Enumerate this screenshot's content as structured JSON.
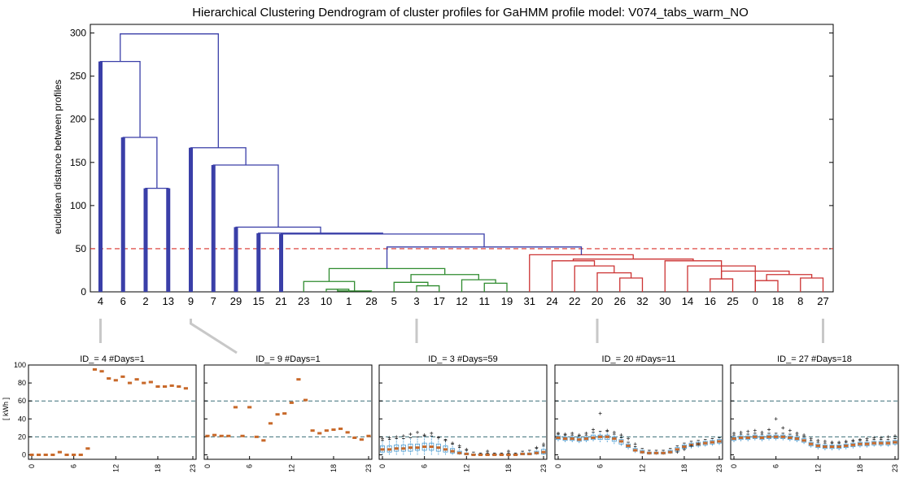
{
  "chart_data": [
    {
      "type": "dendrogram",
      "title": "Hierarchical Clustering Dendrogram of cluster profiles for GaHMM profile model: V074_tabs_warm_NO",
      "ylabel": "euclidean distance between profiles",
      "ylim": [
        0,
        310
      ],
      "yticks": [
        0,
        50,
        100,
        150,
        200,
        250,
        300
      ],
      "threshold": 50,
      "leaves": [
        "4",
        "6",
        "2",
        "13",
        "9",
        "7",
        "29",
        "15",
        "21",
        "23",
        "10",
        "1",
        "28",
        "5",
        "3",
        "17",
        "12",
        "11",
        "19",
        "31",
        "24",
        "22",
        "20",
        "26",
        "32",
        "30",
        "14",
        "16",
        "25",
        "0",
        "18",
        "8",
        "27"
      ],
      "thick_leaves": [
        "4",
        "6",
        "2",
        "13",
        "9",
        "7",
        "29",
        "15",
        "21"
      ],
      "colors": {
        "blue": "#3a3fa8",
        "green": "#2e8b2e",
        "red": "#cc3333",
        "threshold": "#d9302a"
      },
      "links": [
        {
          "l": 10,
          "r": 11,
          "h": 3,
          "c": "green"
        },
        {
          "l": 10.5,
          "r": 12,
          "h": 1,
          "c": "green"
        },
        {
          "l": 9,
          "r": 11.25,
          "h": 12,
          "c": "green"
        },
        {
          "l": 14,
          "r": 15,
          "h": 7,
          "c": "green"
        },
        {
          "l": 13,
          "r": 14.5,
          "h": 11,
          "c": "green"
        },
        {
          "l": 17,
          "r": 18,
          "h": 10,
          "c": "green"
        },
        {
          "l": 16,
          "r": 17.5,
          "h": 14,
          "c": "green"
        },
        {
          "l": 13.75,
          "r": 16.75,
          "h": 20,
          "c": "green"
        },
        {
          "l": 10.125,
          "r": 15.25,
          "h": 27,
          "c": "green"
        },
        {
          "l": 23,
          "r": 24,
          "h": 16,
          "c": "red"
        },
        {
          "l": 22,
          "r": 23.5,
          "h": 22,
          "c": "red"
        },
        {
          "l": 21,
          "r": 22.75,
          "h": 30,
          "c": "red"
        },
        {
          "l": 20,
          "r": 21.875,
          "h": 36,
          "c": "red"
        },
        {
          "l": 27,
          "r": 28,
          "h": 15,
          "c": "red"
        },
        {
          "l": 29,
          "r": 30,
          "h": 13,
          "c": "red"
        },
        {
          "l": 31,
          "r": 32,
          "h": 16,
          "c": "red"
        },
        {
          "l": 29.5,
          "r": 31.5,
          "h": 20,
          "c": "red"
        },
        {
          "l": 27.5,
          "r": 30.5,
          "h": 24,
          "c": "red"
        },
        {
          "l": 26,
          "r": 29,
          "h": 30,
          "c": "red"
        },
        {
          "l": 25,
          "r": 27.5,
          "h": 36,
          "c": "red"
        },
        {
          "l": 20.9375,
          "r": 26.25,
          "h": 38,
          "c": "red"
        },
        {
          "l": 19,
          "r": 23.59375,
          "h": 43,
          "c": "red"
        },
        {
          "l": 12.6875,
          "r": 21.296875,
          "h": 52,
          "c": "blue"
        },
        {
          "l": 8,
          "r": 16.9921875,
          "h": 67,
          "c": "blue"
        },
        {
          "l": 7,
          "r": 12.49609375,
          "h": 68,
          "c": "blue"
        },
        {
          "l": 6,
          "r": 9.748046875,
          "h": 75,
          "c": "blue"
        },
        {
          "l": 5,
          "r": 7.8740234375,
          "h": 147,
          "c": "blue"
        },
        {
          "l": 4,
          "r": 6.43701171875,
          "h": 167,
          "c": "blue"
        },
        {
          "l": 2,
          "r": 3,
          "h": 120,
          "c": "blue"
        },
        {
          "l": 1,
          "r": 2.5,
          "h": 179,
          "c": "blue"
        },
        {
          "l": 0,
          "r": 1.75,
          "h": 267,
          "c": "blue"
        },
        {
          "l": 0.875,
          "r": 5.218505859375,
          "h": 299,
          "c": "blue"
        }
      ],
      "callouts": [
        {
          "leaf": "4",
          "panel": 0
        },
        {
          "leaf": "9",
          "panel": 1
        },
        {
          "leaf": "3",
          "panel": 2
        },
        {
          "leaf": "20",
          "panel": 3
        },
        {
          "leaf": "27",
          "panel": 4
        }
      ]
    },
    {
      "type": "box",
      "panels": [
        {
          "title": "ID_= 4 #Days=1",
          "median": [
            0,
            0,
            0,
            0,
            3,
            0,
            0,
            0,
            7,
            95,
            93,
            85,
            83,
            87,
            80,
            84,
            80,
            81,
            76,
            76,
            77,
            76,
            74
          ],
          "q1": [
            0,
            0,
            0,
            0,
            3,
            0,
            0,
            0,
            7,
            95,
            93,
            85,
            83,
            87,
            80,
            84,
            80,
            81,
            76,
            76,
            77,
            76,
            74
          ],
          "q3": [
            0,
            0,
            0,
            0,
            3,
            0,
            0,
            0,
            7,
            95,
            93,
            85,
            83,
            87,
            80,
            84,
            80,
            81,
            76,
            76,
            77,
            76,
            74
          ],
          "wlo": [
            0,
            0,
            0,
            0,
            3,
            0,
            0,
            0,
            7,
            95,
            93,
            85,
            83,
            87,
            80,
            84,
            80,
            81,
            76,
            76,
            77,
            76,
            74
          ],
          "whi": [
            0,
            0,
            0,
            0,
            3,
            0,
            0,
            0,
            7,
            95,
            93,
            85,
            83,
            87,
            80,
            84,
            80,
            81,
            76,
            76,
            77,
            76,
            74
          ],
          "outliers": []
        },
        {
          "title": "ID_= 9 #Days=1",
          "median": [
            21,
            22,
            21,
            21,
            53,
            21,
            53,
            20,
            16,
            35,
            45,
            46,
            58,
            84,
            61,
            27,
            24,
            27,
            28,
            29,
            25,
            19,
            17,
            21
          ],
          "q1": [
            21,
            22,
            21,
            21,
            53,
            21,
            53,
            20,
            16,
            35,
            45,
            46,
            58,
            84,
            61,
            27,
            24,
            27,
            28,
            29,
            25,
            19,
            17,
            21
          ],
          "q3": [
            21,
            22,
            21,
            21,
            53,
            21,
            53,
            20,
            16,
            35,
            45,
            46,
            58,
            84,
            61,
            27,
            24,
            27,
            28,
            29,
            25,
            19,
            17,
            21
          ],
          "wlo": [
            21,
            22,
            21,
            21,
            53,
            21,
            53,
            20,
            16,
            35,
            45,
            46,
            58,
            84,
            61,
            27,
            24,
            27,
            28,
            29,
            25,
            19,
            17,
            21
          ],
          "whi": [
            21,
            22,
            21,
            21,
            53,
            21,
            53,
            20,
            16,
            35,
            45,
            46,
            58,
            84,
            61,
            27,
            24,
            27,
            28,
            29,
            25,
            19,
            17,
            21
          ],
          "outliers": []
        },
        {
          "title": "ID_= 3 #Days=59",
          "median": [
            6,
            6,
            7,
            7,
            8,
            8,
            9,
            9,
            8,
            6,
            4,
            2,
            1,
            0,
            0,
            0,
            0,
            0,
            0,
            0,
            1,
            1,
            2,
            3
          ],
          "q1": [
            3,
            3,
            4,
            4,
            4,
            5,
            5,
            5,
            4,
            3,
            2,
            1,
            0,
            0,
            0,
            0,
            0,
            0,
            0,
            0,
            0,
            0,
            1,
            1
          ],
          "q3": [
            10,
            10,
            11,
            11,
            12,
            12,
            13,
            13,
            12,
            10,
            7,
            4,
            2,
            1,
            1,
            1,
            1,
            1,
            1,
            1,
            2,
            2,
            4,
            6
          ],
          "wlo": [
            0,
            0,
            0,
            0,
            0,
            0,
            0,
            0,
            0,
            0,
            0,
            0,
            0,
            0,
            0,
            0,
            0,
            0,
            0,
            0,
            0,
            0,
            0,
            0
          ],
          "whi": [
            16,
            17,
            18,
            18,
            19,
            20,
            21,
            21,
            20,
            17,
            12,
            8,
            5,
            3,
            2,
            2,
            2,
            2,
            2,
            2,
            4,
            5,
            7,
            10
          ],
          "outliers": [
            [
              0,
              18
            ],
            [
              1,
              19
            ],
            [
              2,
              20
            ],
            [
              3,
              21
            ],
            [
              4,
              23
            ],
            [
              5,
              25
            ],
            [
              6,
              22
            ],
            [
              7,
              24
            ],
            [
              8,
              19
            ],
            [
              9,
              16
            ],
            [
              10,
              13
            ],
            [
              11,
              10
            ],
            [
              12,
              6
            ],
            [
              22,
              8
            ],
            [
              23,
              12
            ],
            [
              15,
              4
            ],
            [
              18,
              4
            ]
          ]
        },
        {
          "title": "ID_= 20 #Days=11",
          "median": [
            19,
            18,
            18,
            17,
            18,
            19,
            20,
            20,
            18,
            15,
            10,
            5,
            3,
            2,
            2,
            2,
            3,
            6,
            9,
            11,
            12,
            13,
            14,
            15
          ],
          "q1": [
            17,
            16,
            16,
            15,
            16,
            17,
            17,
            17,
            15,
            12,
            8,
            4,
            2,
            1,
            1,
            1,
            2,
            4,
            7,
            9,
            10,
            11,
            12,
            13
          ],
          "q3": [
            21,
            20,
            20,
            19,
            20,
            22,
            22,
            22,
            20,
            17,
            12,
            7,
            5,
            3,
            3,
            3,
            5,
            8,
            11,
            13,
            14,
            15,
            16,
            17
          ],
          "wlo": [
            15,
            14,
            14,
            13,
            14,
            15,
            14,
            14,
            12,
            10,
            6,
            2,
            1,
            0,
            0,
            0,
            1,
            2,
            5,
            7,
            8,
            9,
            10,
            11
          ],
          "whi": [
            23,
            22,
            22,
            21,
            22,
            25,
            26,
            26,
            23,
            19,
            14,
            9,
            7,
            5,
            5,
            5,
            7,
            10,
            13,
            15,
            16,
            17,
            18,
            19
          ],
          "outliers": [
            [
              0,
              24
            ],
            [
              1,
              23
            ],
            [
              2,
              24
            ],
            [
              3,
              22
            ],
            [
              4,
              24
            ],
            [
              5,
              28
            ],
            [
              6,
              46
            ],
            [
              7,
              27
            ],
            [
              8,
              25
            ],
            [
              9,
              22
            ],
            [
              10,
              18
            ],
            [
              11,
              12
            ],
            [
              17,
              3
            ],
            [
              18,
              6
            ],
            [
              19,
              10
            ],
            [
              20,
              12
            ]
          ]
        },
        {
          "title": "ID_= 27 #Days=18",
          "median": [
            18,
            19,
            19,
            20,
            19,
            20,
            20,
            20,
            19,
            18,
            16,
            12,
            10,
            9,
            9,
            9,
            10,
            11,
            12,
            12,
            13,
            13,
            13,
            14
          ],
          "q1": [
            16,
            17,
            17,
            18,
            17,
            18,
            18,
            18,
            17,
            16,
            14,
            10,
            8,
            7,
            7,
            7,
            8,
            9,
            10,
            10,
            11,
            11,
            11,
            12
          ],
          "q3": [
            20,
            21,
            21,
            22,
            21,
            22,
            22,
            22,
            21,
            20,
            18,
            14,
            12,
            11,
            11,
            11,
            12,
            13,
            14,
            14,
            15,
            15,
            15,
            16
          ],
          "wlo": [
            14,
            15,
            15,
            16,
            15,
            16,
            16,
            16,
            15,
            14,
            12,
            8,
            6,
            5,
            5,
            5,
            6,
            7,
            8,
            8,
            9,
            9,
            9,
            10
          ],
          "whi": [
            22,
            23,
            23,
            24,
            23,
            24,
            24,
            24,
            23,
            22,
            20,
            16,
            14,
            13,
            13,
            13,
            14,
            15,
            16,
            16,
            17,
            17,
            17,
            18
          ],
          "outliers": [
            [
              0,
              24
            ],
            [
              1,
              25
            ],
            [
              2,
              26
            ],
            [
              3,
              27
            ],
            [
              4,
              25
            ],
            [
              5,
              28
            ],
            [
              6,
              40
            ],
            [
              7,
              30
            ],
            [
              8,
              27
            ],
            [
              9,
              24
            ],
            [
              10,
              22
            ],
            [
              11,
              18
            ],
            [
              12,
              16
            ],
            [
              13,
              15
            ],
            [
              14,
              14
            ],
            [
              15,
              14
            ],
            [
              16,
              15
            ],
            [
              17,
              16
            ],
            [
              18,
              17
            ],
            [
              19,
              18
            ],
            [
              20,
              19
            ],
            [
              21,
              19
            ],
            [
              22,
              20
            ],
            [
              23,
              21
            ]
          ]
        }
      ],
      "ylabel": "[ kWh ]",
      "ylim": [
        -5,
        100
      ],
      "yticks": [
        0,
        20,
        40,
        60,
        80,
        100
      ],
      "xticks": [
        0,
        6,
        12,
        18,
        23
      ],
      "hlines": [
        20,
        60
      ],
      "median_color": "#c8692a",
      "box_color": "#4a9bd1",
      "hline_color": "#3a6f78"
    }
  ]
}
